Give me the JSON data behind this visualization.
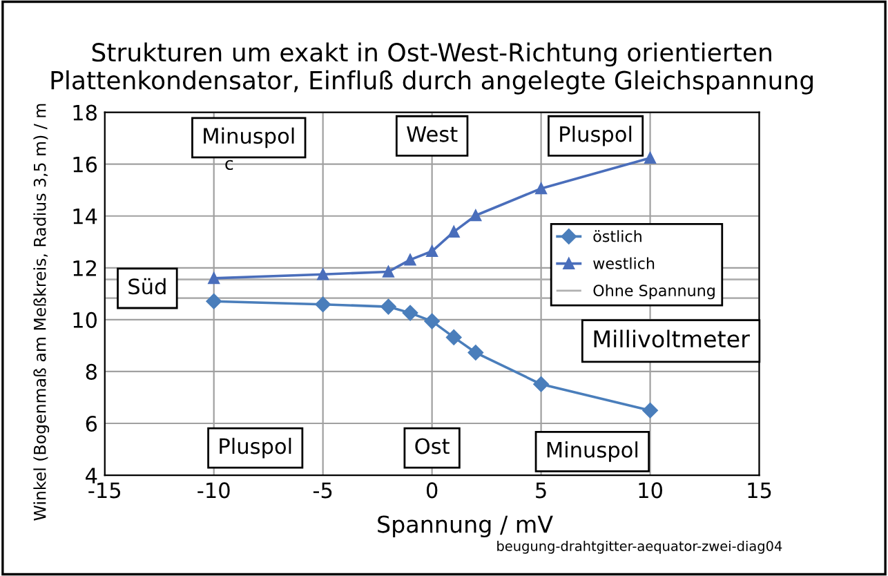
{
  "chart_data": {
    "type": "line",
    "title": "Strukturen um exakt in Ost-West-Richtung orientierten\nPlattenkondensator, Einfluß durch angelegte Gleichspannung",
    "xlabel": "Spannung / mV",
    "ylabel": "Winkel (Bogenmaß am Meßkreis, Radius 3,5 m) / m",
    "x": [
      -10,
      -5,
      -2,
      -1,
      0,
      1,
      2,
      5,
      10
    ],
    "series": [
      {
        "name": "östlich",
        "color": "#4a7ebb",
        "marker": "diamond",
        "values": [
          10.71,
          10.59,
          10.5,
          10.26,
          9.94,
          9.32,
          8.73,
          7.51,
          6.5
        ]
      },
      {
        "name": "westlich",
        "color": "#4a6ebb",
        "marker": "triangle",
        "values": [
          11.6,
          11.75,
          11.85,
          12.31,
          12.64,
          13.39,
          14.02,
          15.06,
          16.24
        ]
      }
    ],
    "ref_lines": [
      {
        "axis": "y",
        "value": 11.55,
        "label": "Ohne Spannung",
        "color": "#b0b0b0"
      },
      {
        "axis": "y",
        "value": 10.83,
        "color": "#b0b0b0"
      }
    ],
    "xlim": [
      -15,
      15
    ],
    "xticks": [
      -15,
      -10,
      -5,
      0,
      5,
      10,
      15
    ],
    "ylim": [
      4,
      18
    ],
    "yticks": [
      4,
      6,
      8,
      10,
      12,
      14,
      16,
      18
    ],
    "grid": true,
    "legend": "right",
    "annotations": [
      "Minuspol",
      "West",
      "Pluspol",
      "c",
      "Süd",
      "Millivoltmeter",
      "Pluspol",
      "Ost",
      "Minuspol",
      "beugung-drahtgitter-aequator-zwei-diag04"
    ]
  }
}
